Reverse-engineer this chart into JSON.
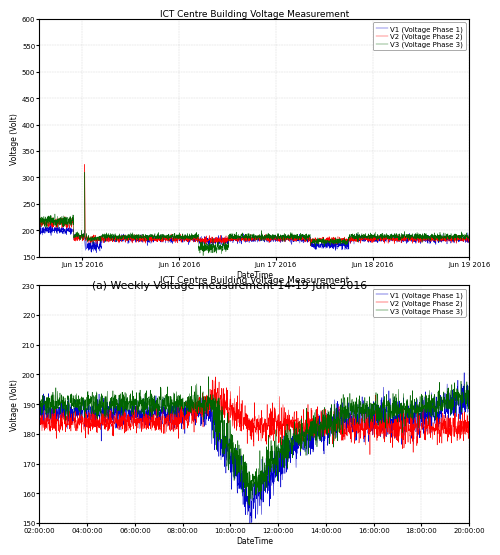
{
  "fig_width": 4.94,
  "fig_height": 5.54,
  "fig_dpi": 100,
  "bg_color": "#ffffff",
  "plot1": {
    "title": "ICT Centre Building Voltage Measurement",
    "xlabel": "DateTime",
    "ylabel": "Voltage (Volt)",
    "ylim": [
      150,
      600
    ],
    "yticks": [
      150,
      200,
      250,
      300,
      350,
      400,
      450,
      500,
      550,
      600
    ],
    "xtick_labels": [
      "Jun 15 2016",
      "Jun 16 2016",
      "Jun 17 2016",
      "Jun 18 2016",
      "Jun 19 2016"
    ],
    "caption": "(a) Weekly Voltage measurement 14-19 June 2016",
    "colors": {
      "V1": "#0000cd",
      "V2": "#ff0000",
      "V3": "#006400"
    },
    "legend_labels": [
      "V1 (Voltage Phase 1)",
      "V2 (Voltage Phase 2)",
      "V3 (Voltage Phase 3)"
    ],
    "grid_color": "#cccccc",
    "n_points": 3000,
    "title_fontsize": 6.5,
    "label_fontsize": 5.5,
    "tick_fontsize": 5,
    "legend_fontsize": 5
  },
  "plot2": {
    "title": "ICT Centre Building Voltage Measurement",
    "xlabel": "DateTime",
    "ylabel": "Voltage (Volt)",
    "ylim": [
      150,
      230
    ],
    "yticks": [
      150,
      160,
      170,
      180,
      190,
      200,
      210,
      220,
      230
    ],
    "xtick_labels": [
      "02:00:00",
      "04:00:00",
      "06:00:00",
      "08:00:00",
      "10:00:00",
      "12:00:00",
      "14:00:00",
      "16:00:00",
      "18:00:00",
      "20:00:00"
    ],
    "colors": {
      "V1": "#0000cd",
      "V2": "#ff0000",
      "V3": "#006400"
    },
    "legend_labels": [
      "V1 (Voltage Phase 1)",
      "V2 (Voltage Phase 2)",
      "V3 (Voltage Phase 3)"
    ],
    "grid_color": "#cccccc",
    "n_points": 2200,
    "title_fontsize": 6.5,
    "label_fontsize": 5.5,
    "tick_fontsize": 5,
    "legend_fontsize": 5
  }
}
